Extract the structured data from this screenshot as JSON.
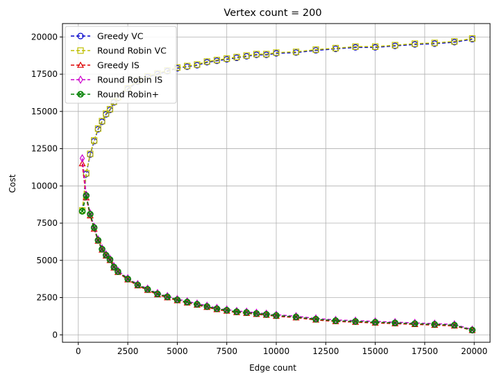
{
  "chart_data": {
    "type": "line",
    "title": "Vertex count = 200",
    "xlabel": "Edge count",
    "ylabel": "Cost",
    "xlim": [
      -800,
      20800
    ],
    "ylim": [
      -500,
      20900
    ],
    "xticks": [
      0,
      2500,
      5000,
      7500,
      10000,
      12500,
      15000,
      17500,
      20000
    ],
    "yticks": [
      0,
      2500,
      5000,
      7500,
      10000,
      12500,
      15000,
      17500,
      20000
    ],
    "grid": true,
    "legend_position": "top-left",
    "x": [
      200,
      400,
      600,
      800,
      1000,
      1200,
      1400,
      1600,
      1800,
      2000,
      2500,
      3000,
      3500,
      4000,
      4500,
      5000,
      5500,
      6000,
      6500,
      7000,
      7500,
      8000,
      8500,
      9000,
      9500,
      10000,
      11000,
      12000,
      13000,
      14000,
      15000,
      16000,
      17000,
      18000,
      19000,
      19900
    ],
    "series": [
      {
        "name": "Greedy VC",
        "color": "#0000cc",
        "marker": "circle",
        "values": [
          8300,
          10800,
          12100,
          13000,
          13800,
          14300,
          14800,
          15100,
          15600,
          15900,
          16500,
          17000,
          17300,
          17500,
          17700,
          17900,
          18000,
          18100,
          18300,
          18400,
          18500,
          18600,
          18700,
          18800,
          18800,
          18900,
          18950,
          19100,
          19200,
          19300,
          19300,
          19400,
          19500,
          19550,
          19650,
          19850
        ]
      },
      {
        "name": "Round Robin VC",
        "color": "#bfbf00",
        "marker": "square",
        "values": [
          8350,
          10850,
          12150,
          13050,
          13850,
          14350,
          14850,
          15150,
          15650,
          15950,
          16550,
          17050,
          17350,
          17550,
          17750,
          17950,
          18050,
          18150,
          18350,
          18450,
          18550,
          18650,
          18750,
          18850,
          18850,
          18950,
          19000,
          19150,
          19250,
          19350,
          19350,
          19450,
          19550,
          19600,
          19700,
          19900
        ]
      },
      {
        "name": "Greedy IS",
        "color": "#dd0000",
        "marker": "triangle",
        "values": [
          11500,
          9200,
          8000,
          7100,
          6300,
          5700,
          5300,
          5000,
          4500,
          4200,
          3700,
          3300,
          3000,
          2700,
          2500,
          2300,
          2150,
          2000,
          1850,
          1700,
          1600,
          1500,
          1450,
          1380,
          1320,
          1250,
          1150,
          1000,
          900,
          850,
          800,
          750,
          700,
          650,
          600,
          300
        ]
      },
      {
        "name": "Round Robin IS",
        "color": "#cc00cc",
        "marker": "diamond",
        "values": [
          11850,
          9400,
          8150,
          7250,
          6400,
          5800,
          5400,
          5100,
          4600,
          4300,
          3800,
          3400,
          3100,
          2800,
          2600,
          2400,
          2250,
          2100,
          1950,
          1800,
          1700,
          1600,
          1550,
          1480,
          1420,
          1350,
          1250,
          1100,
          1000,
          950,
          900,
          850,
          800,
          750,
          700,
          350
        ]
      },
      {
        "name": "Round Robin+",
        "color": "#008000",
        "marker": "x-circle",
        "values": [
          8300,
          9350,
          8100,
          7200,
          6350,
          5750,
          5350,
          5050,
          4550,
          4250,
          3750,
          3350,
          3050,
          2750,
          2550,
          2350,
          2200,
          2050,
          1900,
          1750,
          1650,
          1550,
          1500,
          1430,
          1370,
          1300,
          1200,
          1050,
          950,
          900,
          850,
          800,
          750,
          700,
          650,
          320
        ]
      }
    ]
  }
}
